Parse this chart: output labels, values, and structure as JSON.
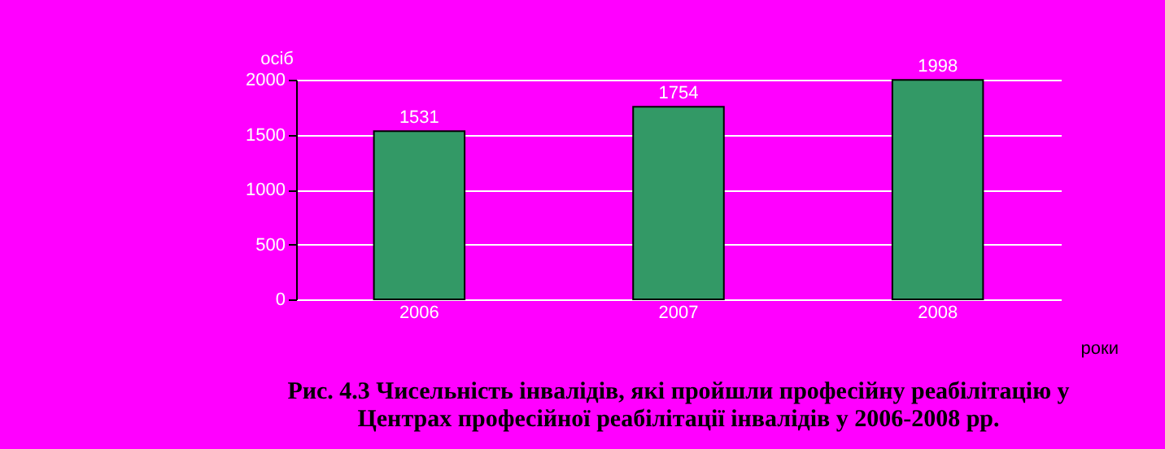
{
  "chart_data": {
    "type": "bar",
    "title": "Рис. 4.3 Чисельність інвалідів, які пройшли професійну реабілітацію у Центрах професійної реабілітації інвалідів у 2006-2008 рр.",
    "xlabel": "роки",
    "ylabel": "осіб",
    "categories": [
      "2006",
      "2007",
      "2008"
    ],
    "values": [
      1531,
      1754,
      1998
    ],
    "color": "#339966",
    "ylim": [
      0,
      2000
    ],
    "yticks": [
      0,
      500,
      1000,
      1500,
      2000
    ],
    "grid": "y",
    "data_labels": true
  }
}
